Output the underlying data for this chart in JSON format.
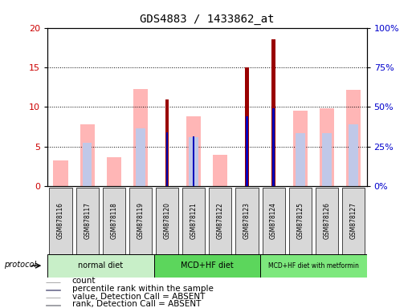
{
  "title": "GDS4883 / 1433862_at",
  "samples": [
    "GSM878116",
    "GSM878117",
    "GSM878118",
    "GSM878119",
    "GSM878120",
    "GSM878121",
    "GSM878122",
    "GSM878123",
    "GSM878124",
    "GSM878125",
    "GSM878126",
    "GSM878127"
  ],
  "count_values": [
    0,
    0,
    0,
    0,
    11,
    0,
    0,
    15,
    18.5,
    0,
    0,
    0
  ],
  "percentile_values": [
    0,
    0,
    0,
    0,
    6.8,
    6.3,
    0,
    8.8,
    9.8,
    0,
    0,
    0
  ],
  "value_absent": [
    3.3,
    7.8,
    3.7,
    12.3,
    0,
    8.8,
    4.0,
    0,
    0,
    9.5,
    9.8,
    12.2
  ],
  "rank_absent": [
    0,
    5.5,
    0,
    7.3,
    0,
    6.2,
    0,
    0,
    0,
    6.7,
    6.7,
    7.8
  ],
  "ylim_left": [
    0,
    20
  ],
  "ylim_right": [
    0,
    100
  ],
  "yticks_left": [
    0,
    5,
    10,
    15,
    20
  ],
  "yticks_right": [
    0,
    25,
    50,
    75,
    100
  ],
  "ytick_labels_right": [
    "0%",
    "25%",
    "50%",
    "75%",
    "100%"
  ],
  "protocol_groups": [
    {
      "label": "normal diet",
      "start": 0,
      "end": 4,
      "color": "#c8efc8"
    },
    {
      "label": "MCD+HF diet",
      "start": 4,
      "end": 8,
      "color": "#5cd65c"
    },
    {
      "label": "MCD+HF diet with metformin",
      "start": 8,
      "end": 12,
      "color": "#7de87d"
    }
  ],
  "color_count": "#990000",
  "color_percentile": "#0000bb",
  "color_value_absent": "#ffb6b6",
  "color_rank_absent": "#c0c8e8",
  "legend_items": [
    {
      "label": "count",
      "color": "#990000"
    },
    {
      "label": "percentile rank within the sample",
      "color": "#0000bb"
    },
    {
      "label": "value, Detection Call = ABSENT",
      "color": "#ffb6b6"
    },
    {
      "label": "rank, Detection Call = ABSENT",
      "color": "#c0c8e8"
    }
  ],
  "left_tick_color": "#cc0000",
  "right_tick_color": "#0000cc",
  "xtick_bg": "#d8d8d8",
  "fig_width": 5.13,
  "fig_height": 3.84,
  "dpi": 100
}
